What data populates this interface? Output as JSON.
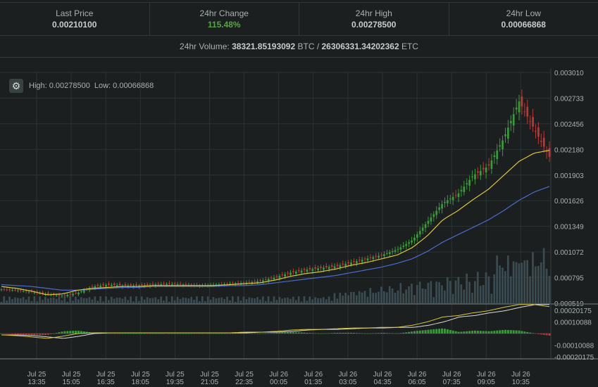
{
  "stats": [
    {
      "label": "Last Price",
      "value": "0.00210100"
    },
    {
      "label": "24hr Change",
      "value": "115.48%"
    },
    {
      "label": "24hr High",
      "value": "0.00278500"
    },
    {
      "label": "24hr Low",
      "value": "0.00066868"
    }
  ],
  "volume": {
    "prefix": "24hr Volume: ",
    "btc": "38321.85193092",
    "btc_unit": " BTC / ",
    "etc": "26306331.34202362",
    "etc_unit": " ETC"
  },
  "chart_header": {
    "settings_icon": "gear-icon",
    "high_text": "High: 0.00278500",
    "low_text": "Low: 0.00066868"
  },
  "colors": {
    "up": "#3a9a3a",
    "down": "#b73a3a",
    "ma_fast": "#d9c441",
    "ma_slow": "#4a6ccd",
    "volume": "#3b4b52",
    "grid": "#2c3333"
  },
  "chart_data": {
    "type": "candlestick",
    "price_axis_ticks": [
      "0.003010",
      "0.002733",
      "0.002456",
      "0.002180",
      "0.001903",
      "0.001626",
      "0.001349",
      "0.001072",
      "0.000795",
      "0.000519"
    ],
    "ylim": [
      0.000519,
      0.00301
    ],
    "macd_axis_ticks": [
      "0.00020175",
      "0.00010088",
      "-0.00010088",
      "-0.00020175"
    ],
    "macd_ylim": [
      -0.00020175,
      0.00020175
    ],
    "time_ticks": [
      {
        "day": "Jul 25",
        "time": "13:35"
      },
      {
        "day": "Jul 25",
        "time": "15:05"
      },
      {
        "day": "Jul 25",
        "time": "16:35"
      },
      {
        "day": "Jul 25",
        "time": "18:05"
      },
      {
        "day": "Jul 25",
        "time": "19:35"
      },
      {
        "day": "Jul 25",
        "time": "21:05"
      },
      {
        "day": "Jul 25",
        "time": "22:35"
      },
      {
        "day": "Jul 26",
        "time": "00:05"
      },
      {
        "day": "Jul 26",
        "time": "01:35"
      },
      {
        "day": "Jul 26",
        "time": "03:05"
      },
      {
        "day": "Jul 26",
        "time": "04:35"
      },
      {
        "day": "Jul 26",
        "time": "06:05"
      },
      {
        "day": "Jul 26",
        "time": "07:35"
      },
      {
        "day": "Jul 26",
        "time": "09:05"
      },
      {
        "day": "Jul 26",
        "time": "10:35"
      }
    ],
    "price_path": [
      0.00067,
      0.00066,
      0.00064,
      0.00062,
      0.0006,
      0.00063,
      0.0007,
      0.00072,
      0.00071,
      0.00071,
      0.00072,
      0.00073,
      0.00072,
      0.00071,
      0.00072,
      0.00073,
      0.00074,
      0.00076,
      0.0008,
      0.00085,
      0.00088,
      0.0009,
      0.00092,
      0.00096,
      0.001,
      0.00104,
      0.0011,
      0.0012,
      0.0014,
      0.0016,
      0.0017,
      0.0019,
      0.002,
      0.0023,
      0.0027,
      0.0024,
      0.0021
    ],
    "ma_fast": [
      0.0007,
      0.00068,
      0.00065,
      0.00061,
      0.00062,
      0.00066,
      0.00068,
      0.00069,
      0.0007,
      0.0007,
      0.00071,
      0.00071,
      0.00071,
      0.00071,
      0.00071,
      0.00072,
      0.00073,
      0.00074,
      0.00077,
      0.00081,
      0.00084,
      0.00086,
      0.00089,
      0.00093,
      0.00096,
      0.001,
      0.00104,
      0.00112,
      0.00125,
      0.00142,
      0.00152,
      0.00164,
      0.00175,
      0.0019,
      0.00205,
      0.00214,
      0.00217
    ],
    "ma_slow": [
      0.00072,
      0.00071,
      0.0007,
      0.00068,
      0.00066,
      0.00066,
      0.00067,
      0.00068,
      0.00069,
      0.00069,
      0.0007,
      0.0007,
      0.0007,
      0.0007,
      0.0007,
      0.00071,
      0.00071,
      0.00072,
      0.00074,
      0.00076,
      0.00078,
      0.0008,
      0.00082,
      0.00085,
      0.00088,
      0.00091,
      0.00095,
      0.001,
      0.00108,
      0.00118,
      0.00126,
      0.00134,
      0.00142,
      0.00152,
      0.00163,
      0.00172,
      0.00178
    ]
  }
}
